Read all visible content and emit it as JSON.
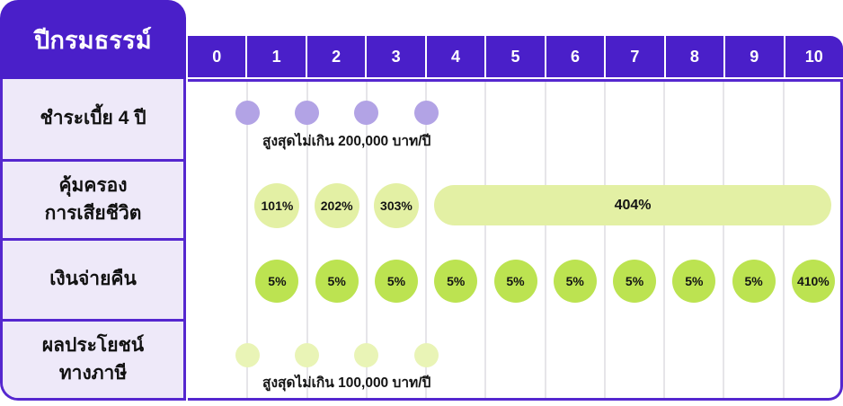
{
  "title": {
    "text": "ปีกรมธรรม์"
  },
  "years": [
    "0",
    "1",
    "2",
    "3",
    "4",
    "5",
    "6",
    "7",
    "8",
    "9",
    "10"
  ],
  "colors": {
    "header_purple": "#4A1FC9",
    "border_purple": "#5527CF",
    "label_bg": "#EEE9F9",
    "premium_dot": "#B2A3E5",
    "coverage_green": "#E3F0A4",
    "tax_dot_green": "#E9F4B6",
    "cashback_green": "#BCE351",
    "gridline": "#E6E5E9",
    "header_text": "#FFFFFF",
    "text_dark": "#111111"
  },
  "rows": [
    {
      "id": "premium",
      "label_lines": [
        "ชำระเบี้ย 4 ปี"
      ],
      "dots": {
        "at_year_marks": [
          1,
          2,
          3,
          4
        ],
        "color": "premium_dot"
      },
      "caption": "สูงสุดไม่เกิน 200,000 บาท/ปี"
    },
    {
      "id": "death-coverage",
      "label_lines": [
        "คุ้มครอง",
        "การเสียชีวิต"
      ],
      "circles": {
        "color": "coverage_green",
        "items": [
          {
            "year": 1,
            "value": "101%"
          },
          {
            "year": 2,
            "value": "202%"
          },
          {
            "year": 3,
            "value": "303%"
          }
        ]
      },
      "pill": {
        "from_year": 4,
        "to_year": 10,
        "value": "404%",
        "color": "coverage_green"
      }
    },
    {
      "id": "cash-back",
      "label_lines": [
        "เงินจ่ายคืน"
      ],
      "circles": {
        "color": "cashback_green",
        "items": [
          {
            "year": 1,
            "value": "5%"
          },
          {
            "year": 2,
            "value": "5%"
          },
          {
            "year": 3,
            "value": "5%"
          },
          {
            "year": 4,
            "value": "5%"
          },
          {
            "year": 5,
            "value": "5%"
          },
          {
            "year": 6,
            "value": "5%"
          },
          {
            "year": 7,
            "value": "5%"
          },
          {
            "year": 8,
            "value": "5%"
          },
          {
            "year": 9,
            "value": "5%"
          },
          {
            "year": 10,
            "value": "410%"
          }
        ]
      }
    },
    {
      "id": "tax-benefit",
      "label_lines": [
        "ผลประโยชน์",
        "ทางภาษี"
      ],
      "dots": {
        "at_year_marks": [
          1,
          2,
          3,
          4
        ],
        "color": "tax_dot_green"
      },
      "caption": "สูงสุดไม่เกิน 100,000 บาท/ปี"
    }
  ]
}
